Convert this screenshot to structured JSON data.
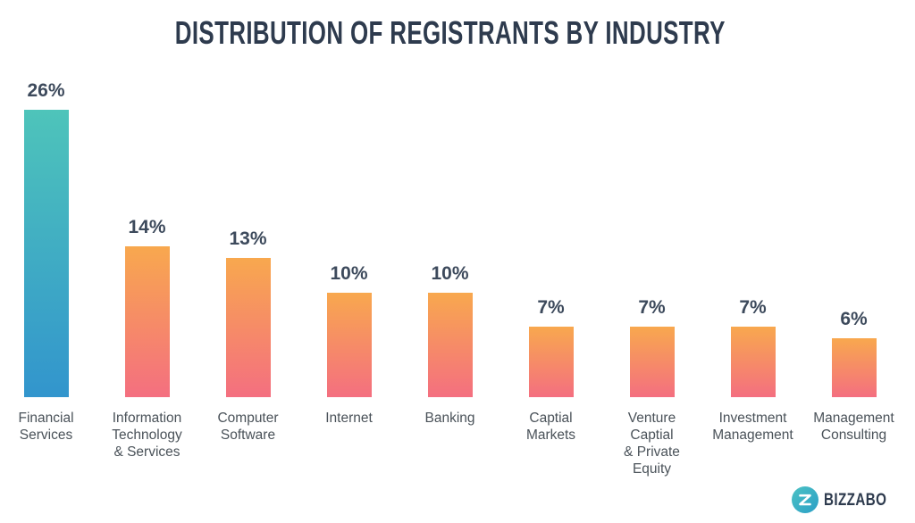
{
  "header": {
    "title": "DISTRIBUTION OF REGISTRANTS BY INDUSTRY"
  },
  "chart_data": {
    "type": "bar",
    "title": "Distribution of Registrants by Industry",
    "xlabel": "",
    "ylabel": "",
    "unit": "%",
    "ylim": [
      0,
      28
    ],
    "grid": false,
    "legend": "none",
    "categories": [
      "Financial Services",
      "Information Technology & Services",
      "Computer Software",
      "Internet",
      "Banking",
      "Captial Markets",
      "Venture Captial & Private Equity",
      "Investment Management",
      "Management Consulting"
    ],
    "values": [
      26,
      14,
      13,
      10,
      10,
      7,
      7,
      7,
      6
    ],
    "value_labels": [
      "26%",
      "14%",
      "13%",
      "10%",
      "10%",
      "7%",
      "7%",
      "7%",
      "6%"
    ],
    "category_labels_multiline": [
      "Financial\nServices",
      "Information\nTechnology\n& Services",
      "Computer\nSoftware",
      "Internet",
      "Banking",
      "Captial\nMarkets",
      "Venture\nCaptial\n& Private\nEquity",
      "Investment\nManagement",
      "Management\nConsulting"
    ],
    "highlight_category": "Financial Services",
    "bar_gradient_highlight": [
      "#4ec4ba",
      "#3295cd"
    ],
    "bar_gradient_default": [
      "#f8a84e",
      "#f46f80"
    ]
  },
  "colors": {
    "background": "#ffffff",
    "title_text": "#2e3b4e",
    "value_label_text": "#3d4a5c",
    "category_label_text": "#4a5259",
    "logo_circle_top": "#4cc2c4",
    "logo_circle_bottom": "#2b9fc6",
    "brand_text": "#2e3b4e"
  },
  "footer": {
    "brand": "BIZZABO",
    "logo_glyph": "Z"
  }
}
